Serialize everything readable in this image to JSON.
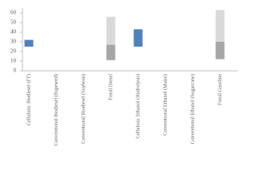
{
  "chart_data": {
    "type": "floating-bar",
    "categories": [
      "Cellulosic Biodiesel (FT)",
      "Conventional Biodiesel (Rapeseed)",
      "Conventional Biodiesel (Soybean)",
      "Fossil Diesel",
      "Cellulosic Ethanol (Hydrolysis)",
      "Conventional Ethanol (Maize)",
      "Conventional Ethanol (Sugarcane)",
      "Fossil Gasoline"
    ],
    "series": [
      {
        "color": "#4f81bd",
        "values": [
          [
            25,
            32
          ],
          null,
          null,
          null,
          [
            25,
            43
          ],
          null,
          null,
          null
        ]
      },
      {
        "color": "#a6a6a6",
        "values": [
          null,
          null,
          null,
          [
            11,
            27
          ],
          null,
          null,
          null,
          [
            12,
            30
          ]
        ]
      },
      {
        "color": "#d9d9d9",
        "values": [
          null,
          null,
          null,
          [
            27,
            56
          ],
          null,
          null,
          null,
          [
            30,
            63
          ]
        ]
      }
    ],
    "ylim": [
      0,
      65
    ],
    "yticks": [
      0,
      10,
      20,
      30,
      40,
      50,
      60
    ],
    "grid": false
  }
}
